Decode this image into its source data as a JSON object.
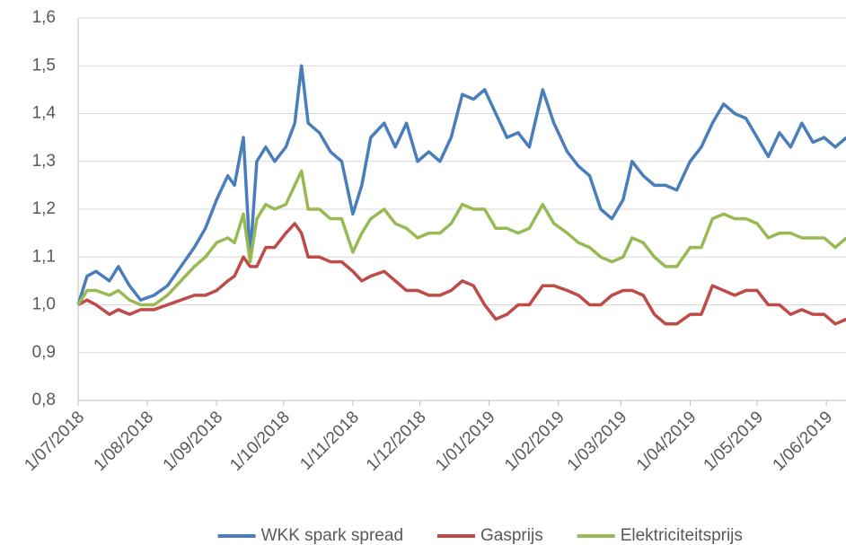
{
  "chart_data": {
    "type": "line",
    "x": [
      "2018-07-01",
      "2018-07-05",
      "2018-07-09",
      "2018-07-15",
      "2018-07-19",
      "2018-07-24",
      "2018-07-29",
      "2018-08-04",
      "2018-08-10",
      "2018-08-16",
      "2018-08-22",
      "2018-08-27",
      "2018-09-01",
      "2018-09-06",
      "2018-09-09",
      "2018-09-13",
      "2018-09-16",
      "2018-09-19",
      "2018-09-23",
      "2018-09-27",
      "2018-10-02",
      "2018-10-06",
      "2018-10-09",
      "2018-10-12",
      "2018-10-17",
      "2018-10-22",
      "2018-10-27",
      "2018-11-01",
      "2018-11-05",
      "2018-11-09",
      "2018-11-15",
      "2018-11-20",
      "2018-11-25",
      "2018-11-30",
      "2018-12-05",
      "2018-12-10",
      "2018-12-15",
      "2018-12-20",
      "2018-12-25",
      "2018-12-30",
      "2019-01-04",
      "2019-01-09",
      "2019-01-14",
      "2019-01-19",
      "2019-01-25",
      "2019-01-30",
      "2019-02-05",
      "2019-02-10",
      "2019-02-15",
      "2019-02-20",
      "2019-02-25",
      "2019-03-02",
      "2019-03-06",
      "2019-03-11",
      "2019-03-16",
      "2019-03-21",
      "2019-03-26",
      "2019-04-01",
      "2019-04-06",
      "2019-04-11",
      "2019-04-16",
      "2019-04-21",
      "2019-04-26",
      "2019-05-01",
      "2019-05-06",
      "2019-05-11",
      "2019-05-16",
      "2019-05-21",
      "2019-05-26",
      "2019-05-31",
      "2019-06-05",
      "2019-06-10"
    ],
    "series": [
      {
        "name": "WKK spark spread",
        "color": "#4a7ebb",
        "values": [
          1.0,
          1.06,
          1.07,
          1.05,
          1.08,
          1.04,
          1.01,
          1.02,
          1.04,
          1.08,
          1.12,
          1.16,
          1.22,
          1.27,
          1.25,
          1.35,
          1.1,
          1.3,
          1.33,
          1.3,
          1.33,
          1.38,
          1.5,
          1.38,
          1.36,
          1.32,
          1.3,
          1.19,
          1.25,
          1.35,
          1.38,
          1.33,
          1.38,
          1.3,
          1.32,
          1.3,
          1.35,
          1.44,
          1.43,
          1.45,
          1.4,
          1.35,
          1.36,
          1.33,
          1.45,
          1.38,
          1.32,
          1.29,
          1.27,
          1.2,
          1.18,
          1.22,
          1.3,
          1.27,
          1.25,
          1.25,
          1.24,
          1.3,
          1.33,
          1.38,
          1.42,
          1.4,
          1.39,
          1.35,
          1.31,
          1.36,
          1.33,
          1.38,
          1.34,
          1.35,
          1.33,
          1.35
        ]
      },
      {
        "name": "Gasprijs",
        "color": "#be4b48",
        "values": [
          1.0,
          1.01,
          1.0,
          0.98,
          0.99,
          0.98,
          0.99,
          0.99,
          1.0,
          1.01,
          1.02,
          1.02,
          1.03,
          1.05,
          1.06,
          1.1,
          1.08,
          1.08,
          1.12,
          1.12,
          1.15,
          1.17,
          1.15,
          1.1,
          1.1,
          1.09,
          1.09,
          1.07,
          1.05,
          1.06,
          1.07,
          1.05,
          1.03,
          1.03,
          1.02,
          1.02,
          1.03,
          1.05,
          1.04,
          1.0,
          0.97,
          0.98,
          1.0,
          1.0,
          1.04,
          1.04,
          1.03,
          1.02,
          1.0,
          1.0,
          1.02,
          1.03,
          1.03,
          1.02,
          0.98,
          0.96,
          0.96,
          0.98,
          0.98,
          1.04,
          1.03,
          1.02,
          1.03,
          1.03,
          1.0,
          1.0,
          0.98,
          0.99,
          0.98,
          0.98,
          0.96,
          0.97
        ]
      },
      {
        "name": "Elektriciteitsprijs",
        "color": "#98b954",
        "values": [
          1.0,
          1.03,
          1.03,
          1.02,
          1.03,
          1.01,
          1.0,
          1.0,
          1.02,
          1.05,
          1.08,
          1.1,
          1.13,
          1.14,
          1.13,
          1.19,
          1.09,
          1.18,
          1.21,
          1.2,
          1.21,
          1.25,
          1.28,
          1.2,
          1.2,
          1.18,
          1.18,
          1.11,
          1.15,
          1.18,
          1.2,
          1.17,
          1.16,
          1.14,
          1.15,
          1.15,
          1.17,
          1.21,
          1.2,
          1.2,
          1.16,
          1.16,
          1.15,
          1.16,
          1.21,
          1.17,
          1.15,
          1.13,
          1.12,
          1.1,
          1.09,
          1.1,
          1.14,
          1.13,
          1.1,
          1.08,
          1.08,
          1.12,
          1.12,
          1.18,
          1.19,
          1.18,
          1.18,
          1.17,
          1.14,
          1.15,
          1.15,
          1.14,
          1.14,
          1.14,
          1.12,
          1.14
        ]
      }
    ],
    "xlim": [
      "2018-07-01",
      "2019-06-10"
    ],
    "xticks": [
      {
        "value": "2018-07-01",
        "label": "1/07/2018"
      },
      {
        "value": "2018-08-01",
        "label": "1/08/2018"
      },
      {
        "value": "2018-09-01",
        "label": "1/09/2018"
      },
      {
        "value": "2018-10-01",
        "label": "1/10/2018"
      },
      {
        "value": "2018-11-01",
        "label": "1/11/2018"
      },
      {
        "value": "2018-12-01",
        "label": "1/12/2018"
      },
      {
        "value": "2019-01-01",
        "label": "1/01/2019"
      },
      {
        "value": "2019-02-01",
        "label": "1/02/2019"
      },
      {
        "value": "2019-03-01",
        "label": "1/03/2019"
      },
      {
        "value": "2019-04-01",
        "label": "1/04/2019"
      },
      {
        "value": "2019-05-01",
        "label": "1/05/2019"
      },
      {
        "value": "2019-06-01",
        "label": "1/06/2019"
      }
    ],
    "ylim": [
      0.8,
      1.6
    ],
    "yticks": [
      {
        "value": 0.8,
        "label": "0,8"
      },
      {
        "value": 0.9,
        "label": "0,9"
      },
      {
        "value": 1.0,
        "label": "1,0"
      },
      {
        "value": 1.1,
        "label": "1,1"
      },
      {
        "value": 1.2,
        "label": "1,2"
      },
      {
        "value": 1.3,
        "label": "1,3"
      },
      {
        "value": 1.4,
        "label": "1,4"
      },
      {
        "value": 1.5,
        "label": "1,5"
      },
      {
        "value": 1.6,
        "label": "1,6"
      }
    ],
    "grid": true,
    "legend": "bottom"
  }
}
